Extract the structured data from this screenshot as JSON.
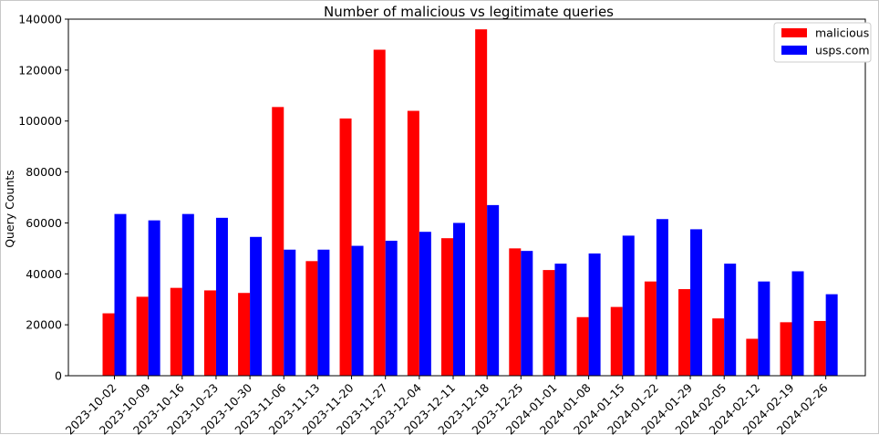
{
  "chart_data": {
    "type": "bar",
    "title": "Number of malicious vs legitimate queries",
    "xlabel": "",
    "ylabel": "Query Counts",
    "ylim": [
      0,
      140000
    ],
    "yticks": [
      0,
      20000,
      40000,
      60000,
      80000,
      100000,
      120000,
      140000
    ],
    "ytick_labels": [
      "0",
      "20000",
      "40000",
      "60000",
      "80000",
      "100000",
      "120000",
      "140000"
    ],
    "categories": [
      "2023-10-02",
      "2023-10-09",
      "2023-10-16",
      "2023-10-23",
      "2023-10-30",
      "2023-11-06",
      "2023-11-13",
      "2023-11-20",
      "2023-11-27",
      "2023-12-04",
      "2023-12-11",
      "2023-12-18",
      "2023-12-25",
      "2024-01-01",
      "2024-01-08",
      "2024-01-15",
      "2024-01-22",
      "2024-01-29",
      "2024-02-05",
      "2024-02-12",
      "2024-02-19",
      "2024-02-26"
    ],
    "series": [
      {
        "name": "malicious",
        "color": "#ff0000",
        "values": [
          24500,
          31000,
          34500,
          33500,
          32500,
          105500,
          45000,
          101000,
          128000,
          104000,
          54000,
          136000,
          50000,
          41500,
          23000,
          27000,
          37000,
          34000,
          22500,
          14500,
          21000,
          21500
        ]
      },
      {
        "name": "usps.com",
        "color": "#0000ff",
        "values": [
          63500,
          61000,
          63500,
          62000,
          54500,
          49500,
          49500,
          51000,
          53000,
          56500,
          60000,
          67000,
          49000,
          44000,
          48000,
          55000,
          61500,
          57500,
          44000,
          37000,
          41000,
          32000
        ]
      }
    ],
    "legend_position": "top-right",
    "grid": false
  }
}
